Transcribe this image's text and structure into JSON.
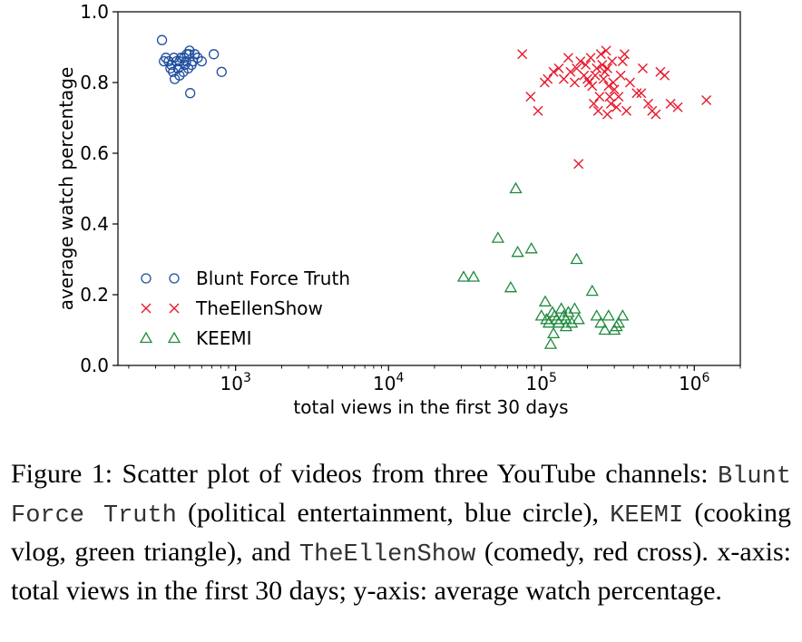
{
  "chart_data": {
    "type": "scatter",
    "xscale": "log",
    "xlabel": "total views in the first 30 days",
    "ylabel": "average watch percentage",
    "xlim": [
      170,
      2000000
    ],
    "ylim": [
      0.0,
      1.0
    ],
    "xticks": [
      {
        "value": 1000,
        "base": "10",
        "exp": "3"
      },
      {
        "value": 10000,
        "base": "10",
        "exp": "4"
      },
      {
        "value": 100000,
        "base": "10",
        "exp": "5"
      },
      {
        "value": 1000000,
        "base": "10",
        "exp": "6"
      }
    ],
    "yticks": [
      "0.0",
      "0.2",
      "0.4",
      "0.6",
      "0.8",
      "1.0"
    ],
    "legend_position": "lower-left",
    "series": [
      {
        "name": "Blunt Force Truth",
        "marker": "circle",
        "color": "#1f4e9e",
        "points": [
          [
            330,
            0.92
          ],
          [
            340,
            0.86
          ],
          [
            350,
            0.87
          ],
          [
            365,
            0.86
          ],
          [
            375,
            0.84
          ],
          [
            380,
            0.85
          ],
          [
            390,
            0.83
          ],
          [
            395,
            0.87
          ],
          [
            400,
            0.81
          ],
          [
            410,
            0.86
          ],
          [
            420,
            0.84
          ],
          [
            430,
            0.86
          ],
          [
            440,
            0.87
          ],
          [
            455,
            0.83
          ],
          [
            465,
            0.85
          ],
          [
            475,
            0.86
          ],
          [
            480,
            0.88
          ],
          [
            490,
            0.84
          ],
          [
            500,
            0.89
          ],
          [
            505,
            0.77
          ],
          [
            515,
            0.85
          ],
          [
            525,
            0.86
          ],
          [
            540,
            0.88
          ],
          [
            565,
            0.87
          ],
          [
            600,
            0.86
          ],
          [
            720,
            0.88
          ],
          [
            810,
            0.83
          ],
          [
            460,
            0.87
          ],
          [
            430,
            0.82
          ],
          [
            495,
            0.88
          ]
        ]
      },
      {
        "name": "TheEllenShow",
        "marker": "cross",
        "color": "#e8192c",
        "points": [
          [
            75000,
            0.88
          ],
          [
            85000,
            0.76
          ],
          [
            95000,
            0.72
          ],
          [
            105000,
            0.8
          ],
          [
            110000,
            0.81
          ],
          [
            120000,
            0.83
          ],
          [
            130000,
            0.84
          ],
          [
            140000,
            0.81
          ],
          [
            150000,
            0.87
          ],
          [
            155000,
            0.83
          ],
          [
            165000,
            0.8
          ],
          [
            170000,
            0.84
          ],
          [
            175000,
            0.57
          ],
          [
            180000,
            0.86
          ],
          [
            190000,
            0.82
          ],
          [
            195000,
            0.85
          ],
          [
            200000,
            0.81
          ],
          [
            205000,
            0.8
          ],
          [
            210000,
            0.87
          ],
          [
            215000,
            0.79
          ],
          [
            220000,
            0.74
          ],
          [
            225000,
            0.82
          ],
          [
            230000,
            0.84
          ],
          [
            235000,
            0.72
          ],
          [
            240000,
            0.76
          ],
          [
            245000,
            0.88
          ],
          [
            250000,
            0.85
          ],
          [
            255000,
            0.81
          ],
          [
            260000,
            0.83
          ],
          [
            265000,
            0.89
          ],
          [
            270000,
            0.84
          ],
          [
            275000,
            0.79
          ],
          [
            280000,
            0.76
          ],
          [
            285000,
            0.74
          ],
          [
            290000,
            0.86
          ],
          [
            295000,
            0.8
          ],
          [
            300000,
            0.78
          ],
          [
            310000,
            0.73
          ],
          [
            320000,
            0.76
          ],
          [
            330000,
            0.82
          ],
          [
            340000,
            0.86
          ],
          [
            360000,
            0.72
          ],
          [
            380000,
            0.8
          ],
          [
            420000,
            0.77
          ],
          [
            460000,
            0.84
          ],
          [
            500000,
            0.74
          ],
          [
            530000,
            0.72
          ],
          [
            560000,
            0.71
          ],
          [
            600000,
            0.83
          ],
          [
            640000,
            0.82
          ],
          [
            780000,
            0.73
          ],
          [
            1200000,
            0.75
          ],
          [
            350000,
            0.88
          ],
          [
            450000,
            0.77
          ],
          [
            270000,
            0.71
          ],
          [
            700000,
            0.74
          ]
        ]
      },
      {
        "name": "KEEMI",
        "marker": "triangle",
        "color": "#1f8a3c",
        "points": [
          [
            31000,
            0.25
          ],
          [
            36000,
            0.25
          ],
          [
            52000,
            0.36
          ],
          [
            63000,
            0.22
          ],
          [
            68000,
            0.5
          ],
          [
            70000,
            0.32
          ],
          [
            86000,
            0.33
          ],
          [
            100000,
            0.14
          ],
          [
            106000,
            0.18
          ],
          [
            108000,
            0.13
          ],
          [
            112000,
            0.12
          ],
          [
            115000,
            0.06
          ],
          [
            118000,
            0.15
          ],
          [
            122000,
            0.14
          ],
          [
            126000,
            0.13
          ],
          [
            130000,
            0.12
          ],
          [
            135000,
            0.16
          ],
          [
            140000,
            0.14
          ],
          [
            145000,
            0.13
          ],
          [
            150000,
            0.15
          ],
          [
            158000,
            0.12
          ],
          [
            165000,
            0.16
          ],
          [
            170000,
            0.3
          ],
          [
            175000,
            0.13
          ],
          [
            215000,
            0.21
          ],
          [
            230000,
            0.14
          ],
          [
            245000,
            0.12
          ],
          [
            260000,
            0.1
          ],
          [
            275000,
            0.14
          ],
          [
            300000,
            0.1
          ],
          [
            320000,
            0.12
          ],
          [
            340000,
            0.14
          ],
          [
            310000,
            0.11
          ],
          [
            120000,
            0.09
          ],
          [
            145000,
            0.11
          ]
        ]
      }
    ]
  },
  "caption": {
    "part1": "Figure 1: Scatter plot of videos from three YouTube channels: ",
    "name1": "Blunt Force Truth",
    "part2": " (political entertainment, blue circle), ",
    "name2": "KEEMI",
    "part3": " (cooking vlog, green triangle), and ",
    "name3": "TheEllenShow",
    "part4": " (comedy, red cross). x-axis: total views in the first 30 days; y-axis: average watch percentage."
  }
}
